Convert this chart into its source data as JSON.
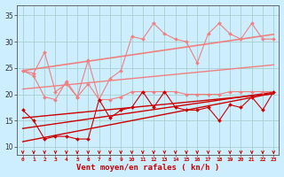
{
  "x": [
    0,
    1,
    2,
    3,
    4,
    5,
    6,
    7,
    8,
    9,
    10,
    11,
    12,
    13,
    14,
    15,
    16,
    17,
    18,
    19,
    20,
    21,
    22,
    23
  ],
  "series": [
    {
      "name": "max_rafales",
      "color": "#f08080",
      "linewidth": 0.8,
      "marker": "D",
      "markersize": 2.0,
      "values": [
        24.5,
        24.0,
        28.0,
        20.5,
        22.0,
        19.5,
        26.5,
        19.0,
        23.0,
        24.5,
        31.0,
        30.5,
        33.5,
        31.5,
        30.5,
        30.0,
        26.0,
        31.5,
        33.5,
        31.5,
        30.5,
        33.5,
        30.5,
        30.5
      ]
    },
    {
      "name": "trend_max",
      "color": "#f08080",
      "linewidth": 1.2,
      "marker": null,
      "markersize": 0,
      "values": [
        24.5,
        24.8,
        25.1,
        25.4,
        25.7,
        26.0,
        26.3,
        26.6,
        26.9,
        27.2,
        27.5,
        27.8,
        28.1,
        28.4,
        28.7,
        29.0,
        29.3,
        29.6,
        29.9,
        30.2,
        30.5,
        30.8,
        31.1,
        31.4
      ]
    },
    {
      "name": "mid_rafales",
      "color": "#f08080",
      "linewidth": 0.8,
      "marker": "D",
      "markersize": 2.0,
      "values": [
        24.5,
        23.5,
        19.5,
        19.0,
        22.5,
        19.5,
        22.0,
        19.0,
        19.0,
        19.5,
        20.5,
        20.5,
        20.5,
        20.5,
        20.5,
        20.0,
        20.0,
        20.0,
        20.0,
        20.5,
        20.5,
        20.5,
        20.5,
        20.5
      ]
    },
    {
      "name": "trend_mid",
      "color": "#f08080",
      "linewidth": 1.0,
      "marker": null,
      "markersize": 0,
      "values": [
        21.0,
        21.2,
        21.4,
        21.6,
        21.8,
        22.0,
        22.2,
        22.4,
        22.6,
        22.8,
        23.0,
        23.2,
        23.4,
        23.6,
        23.8,
        24.0,
        24.2,
        24.4,
        24.6,
        24.8,
        25.0,
        25.2,
        25.4,
        25.6
      ]
    },
    {
      "name": "vent_moyen_line",
      "color": "#cc0000",
      "linewidth": 0.8,
      "marker": "D",
      "markersize": 2.0,
      "values": [
        17.0,
        15.0,
        11.5,
        12.0,
        12.0,
        11.5,
        11.5,
        19.0,
        15.5,
        17.0,
        17.5,
        20.5,
        17.5,
        20.5,
        17.5,
        17.0,
        17.0,
        17.5,
        15.0,
        18.0,
        17.5,
        19.5,
        17.0,
        20.5
      ]
    },
    {
      "name": "trend_vent1",
      "color": "#cc0000",
      "linewidth": 1.0,
      "marker": null,
      "markersize": 0,
      "values": [
        11.0,
        11.4,
        11.8,
        12.2,
        12.6,
        13.0,
        13.4,
        13.8,
        14.2,
        14.6,
        15.0,
        15.4,
        15.8,
        16.2,
        16.6,
        17.0,
        17.4,
        17.8,
        18.2,
        18.6,
        19.0,
        19.4,
        19.8,
        20.2
      ]
    },
    {
      "name": "trend_vent2",
      "color": "#cc0000",
      "linewidth": 1.0,
      "marker": null,
      "markersize": 0,
      "values": [
        13.5,
        13.8,
        14.1,
        14.4,
        14.7,
        15.0,
        15.3,
        15.6,
        15.9,
        16.2,
        16.5,
        16.8,
        17.1,
        17.4,
        17.7,
        18.0,
        18.3,
        18.6,
        18.9,
        19.2,
        19.5,
        19.8,
        20.1,
        20.4
      ]
    },
    {
      "name": "trend_vent3",
      "color": "#cc0000",
      "linewidth": 1.0,
      "marker": null,
      "markersize": 0,
      "values": [
        15.5,
        15.7,
        15.9,
        16.1,
        16.3,
        16.5,
        16.7,
        16.9,
        17.1,
        17.3,
        17.5,
        17.7,
        17.9,
        18.1,
        18.3,
        18.5,
        18.7,
        18.9,
        19.1,
        19.3,
        19.5,
        19.7,
        19.9,
        20.1
      ]
    }
  ],
  "xlim": [
    -0.5,
    23.5
  ],
  "ylim": [
    8.5,
    37
  ],
  "yticks": [
    10,
    15,
    20,
    25,
    30,
    35
  ],
  "xticks": [
    0,
    1,
    2,
    3,
    4,
    5,
    6,
    7,
    8,
    9,
    10,
    11,
    12,
    13,
    14,
    15,
    16,
    17,
    18,
    19,
    20,
    21,
    22,
    23
  ],
  "xlabel": "Vent moyen/en rafales ( kn/h )",
  "background_color": "#cceeff",
  "grid_color": "#aacfcf",
  "arrow_color": "#cc0000",
  "figsize": [
    3.2,
    2.0
  ],
  "dpi": 100
}
